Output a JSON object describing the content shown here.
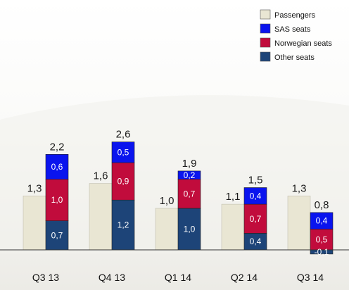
{
  "chart_data": {
    "type": "bar",
    "categories": [
      "Q3 13",
      "Q4 13",
      "Q1 14",
      "Q2 14",
      "Q3 14"
    ],
    "series": [
      {
        "name": "Passengers",
        "values": [
          1.3,
          1.6,
          1.0,
          1.1,
          1.3
        ],
        "labels": [
          "1,3",
          "1,6",
          "1,0",
          "1,1",
          "1,3"
        ]
      },
      {
        "name": "SAS seats",
        "values": [
          0.6,
          0.5,
          0.2,
          0.4,
          0.4
        ],
        "labels": [
          "0,6",
          "0,5",
          "0,2",
          "0,4",
          "0,4"
        ]
      },
      {
        "name": "Norwegian seats",
        "values": [
          1.0,
          0.9,
          0.7,
          0.7,
          0.5
        ],
        "labels": [
          "1,0",
          "0,9",
          "0,7",
          "0,7",
          "0,5"
        ]
      },
      {
        "name": "Other seats",
        "values": [
          0.7,
          1.2,
          1.0,
          0.4,
          -0.1
        ],
        "labels": [
          "0,7",
          "1,2",
          "1,0",
          "0,4",
          "-0,1"
        ]
      }
    ],
    "seat_totals": [
      2.2,
      2.6,
      1.9,
      1.5,
      0.8
    ],
    "seat_total_labels": [
      "2,2",
      "2,6",
      "1,9",
      "1,5",
      "0,8"
    ],
    "stacked_series": [
      "Other seats",
      "Norwegian seats",
      "SAS seats"
    ],
    "legend_order": [
      "Passengers",
      "SAS seats",
      "Norwegian seats",
      "Other seats"
    ],
    "colors": {
      "Passengers": "#e9e6d3",
      "SAS seats": "#0a14ee",
      "Norwegian seats": "#c10c3c",
      "Other seats": "#1d4478"
    },
    "ylim": [
      -0.1,
      2.6
    ],
    "legend_position": "top-right",
    "grid": false,
    "title": "",
    "xlabel": "",
    "ylabel": ""
  }
}
